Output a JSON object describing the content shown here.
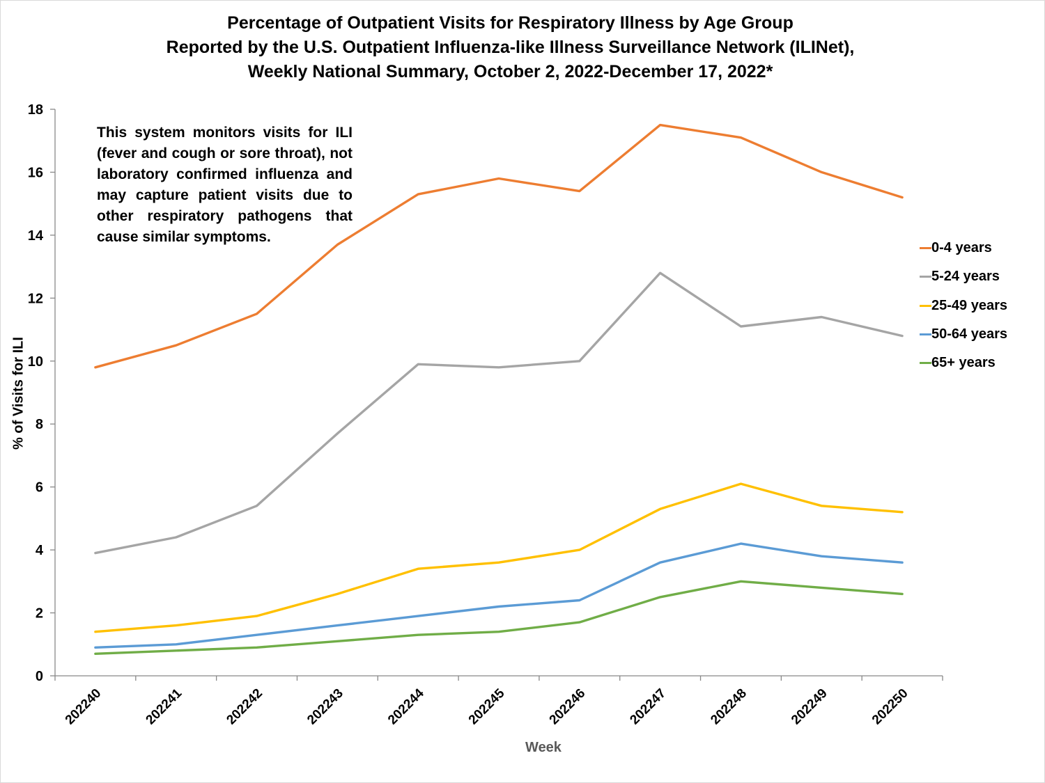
{
  "chart_data": {
    "type": "line",
    "title_lines": [
      "Percentage of Outpatient Visits for Respiratory Illness by Age Group",
      "Reported by the U.S. Outpatient Influenza-like Illness Surveillance Network (ILINet),",
      "Weekly National Summary, October 2, 2022-December 17, 2022*"
    ],
    "annotation": "This system monitors visits for ILI (fever and cough or sore throat), not laboratory confirmed influenza and may capture patient visits due to other respiratory pathogens that cause similar symptoms.",
    "xlabel": "Week",
    "ylabel": "% of Visits for ILI",
    "categories": [
      "202240",
      "202241",
      "202242",
      "202243",
      "202244",
      "202245",
      "202246",
      "202247",
      "202248",
      "202249",
      "202250"
    ],
    "ylim": [
      0,
      18
    ],
    "yticks": [
      0,
      2,
      4,
      6,
      8,
      10,
      12,
      14,
      16,
      18
    ],
    "grid": false,
    "legend_position": "right",
    "series": [
      {
        "name": "0-4 years",
        "color": "#ED7D31",
        "values": [
          9.8,
          10.5,
          11.5,
          13.7,
          15.3,
          15.8,
          15.4,
          17.5,
          17.1,
          16.0,
          15.2
        ]
      },
      {
        "name": "5-24 years",
        "color": "#A5A5A5",
        "values": [
          3.9,
          4.4,
          5.4,
          7.7,
          9.9,
          9.8,
          10.0,
          12.8,
          11.1,
          11.4,
          10.8
        ]
      },
      {
        "name": "25-49 years",
        "color": "#FFC000",
        "values": [
          1.4,
          1.6,
          1.9,
          2.6,
          3.4,
          3.6,
          4.0,
          5.3,
          6.1,
          5.4,
          5.2
        ]
      },
      {
        "name": "50-64 years",
        "color": "#5B9BD5",
        "values": [
          0.9,
          1.0,
          1.3,
          1.6,
          1.9,
          2.2,
          2.4,
          3.6,
          4.2,
          3.8,
          3.6
        ]
      },
      {
        "name": "65+ years",
        "color": "#70AD47",
        "values": [
          0.7,
          0.8,
          0.9,
          1.1,
          1.3,
          1.4,
          1.7,
          2.5,
          3.0,
          2.8,
          2.6
        ]
      }
    ]
  }
}
